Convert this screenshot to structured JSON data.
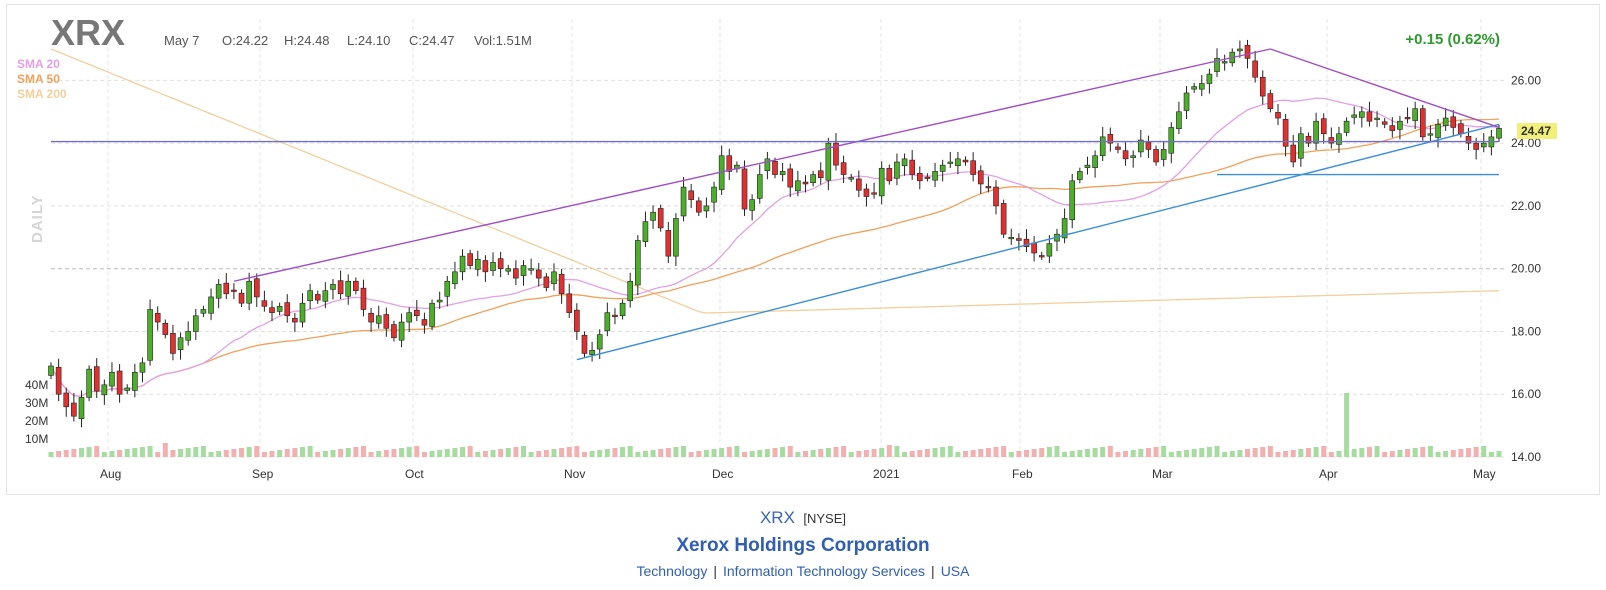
{
  "header": {
    "ticker": "XRX",
    "date": "May 7",
    "open": "O:24.22",
    "high": "H:24.48",
    "low": "L:24.10",
    "close": "C:24.47",
    "volume": "Vol:1.51M",
    "change": "+0.15 (0.62%)",
    "period": "DAILY"
  },
  "legend": [
    {
      "label": "SMA 20",
      "color": "#e4a0e4"
    },
    {
      "label": "SMA 50",
      "color": "#f3a05a"
    },
    {
      "label": "SMA 200",
      "color": "#f2cf9c"
    }
  ],
  "footer": {
    "symbol": "XRX",
    "exchange": "[NYSE]",
    "company": "Xerox Holdings Corporation",
    "sector": "Technology",
    "industry": "Information Technology Services",
    "country": "USA",
    "separator": "|"
  },
  "chart_data": {
    "type": "candlestick",
    "x_axis_labels": [
      "Aug",
      "Sep",
      "Oct",
      "Nov",
      "Dec",
      "2021",
      "Feb",
      "Mar",
      "Apr",
      "May"
    ],
    "y_axis_labels": [
      "26.00",
      "24.00",
      "22.00",
      "20.00",
      "18.00",
      "16.00",
      "14.00"
    ],
    "y_range": [
      14,
      27
    ],
    "volume_axis_labels": [
      "40M",
      "30M",
      "20M",
      "10M"
    ],
    "last_price_label": "24.47",
    "last_price": 24.47,
    "up_color": "#4caf2a",
    "down_color": "#e23030",
    "trendlines": [
      {
        "id": "upper-channel",
        "color": "#a04ec8",
        "from": [
          "Aug 27",
          19.6
        ],
        "to": [
          "Mar 10",
          27.0
        ]
      },
      {
        "id": "lower-channel",
        "color": "#3a8fd8",
        "from": [
          "Oct 30",
          17.1
        ],
        "to": [
          "May 7",
          24.6
        ]
      },
      {
        "id": "descending-resistance",
        "color": "#a04ec8",
        "from": [
          "Mar 10",
          27.0
        ],
        "to": [
          "May 7",
          24.5
        ]
      },
      {
        "id": "horizontal-resistance",
        "color": "#7070c8",
        "from": [
          "Jul 22",
          24.05
        ],
        "to": [
          "May 7",
          24.05
        ]
      },
      {
        "id": "horizontal-support",
        "color": "#3a8fd8",
        "from": [
          "Feb 28",
          23.0
        ],
        "to": [
          "May 7",
          23.0
        ]
      }
    ],
    "closes": [
      16.9,
      16.0,
      15.6,
      15.3,
      15.9,
      16.8,
      16.1,
      16.3,
      16.7,
      16.0,
      16.2,
      16.7,
      17.0,
      18.7,
      18.3,
      17.9,
      17.3,
      17.8,
      18.0,
      18.5,
      18.7,
      19.1,
      19.5,
      19.2,
      19.3,
      18.9,
      19.6,
      19.1,
      18.8,
      18.6,
      18.8,
      18.5,
      18.3,
      18.9,
      19.3,
      19.0,
      19.3,
      19.5,
      19.2,
      19.6,
      19.3,
      18.7,
      18.3,
      18.5,
      18.1,
      17.8,
      18.3,
      18.6,
      18.5,
      18.2,
      18.9,
      19.0,
      19.6,
      19.9,
      20.4,
      20.1,
      20.3,
      19.9,
      20.2,
      20.0,
      20.0,
      19.7,
      20.1,
      20.0,
      19.7,
      19.4,
      19.9,
      19.2,
      18.6,
      18.0,
      17.3,
      17.4,
      17.9,
      18.6,
      18.5,
      18.9,
      19.6,
      20.9,
      21.5,
      21.8,
      21.3,
      20.4,
      21.6,
      22.6,
      22.2,
      21.8,
      22.0,
      22.6,
      23.6,
      23.1,
      23.3,
      21.9,
      22.2,
      23.0,
      23.5,
      23.0,
      23.1,
      22.6,
      22.8,
      22.7,
      23.0,
      22.9,
      24.0,
      23.3,
      23.0,
      22.9,
      22.5,
      22.3,
      22.4,
      23.2,
      22.8,
      23.4,
      23.5,
      23.0,
      22.8,
      22.9,
      23.1,
      23.3,
      23.4,
      23.5,
      23.4,
      23.0,
      22.7,
      22.6,
      22.0,
      21.1,
      21.0,
      20.9,
      20.7,
      20.5,
      20.4,
      20.8,
      21.1,
      21.6,
      22.8,
      23.1,
      23.3,
      23.6,
      24.2,
      24.0,
      23.8,
      23.5,
      23.6,
      24.1,
      23.8,
      23.4,
      23.8,
      24.5,
      25.0,
      25.6,
      25.8,
      25.9,
      26.2,
      26.7,
      26.6,
      26.9,
      27.0,
      26.7,
      26.1,
      25.5,
      25.1,
      24.8,
      23.9,
      23.4,
      24.3,
      24.0,
      24.7,
      24.3,
      24.0,
      24.3,
      24.7,
      24.9,
      25.0,
      24.7,
      24.8,
      24.6,
      24.4,
      24.7,
      24.8,
      25.1,
      24.2,
      24.3,
      24.6,
      24.8,
      24.5,
      24.3,
      24.0,
      23.8,
      24.0,
      24.2,
      24.47
    ]
  }
}
